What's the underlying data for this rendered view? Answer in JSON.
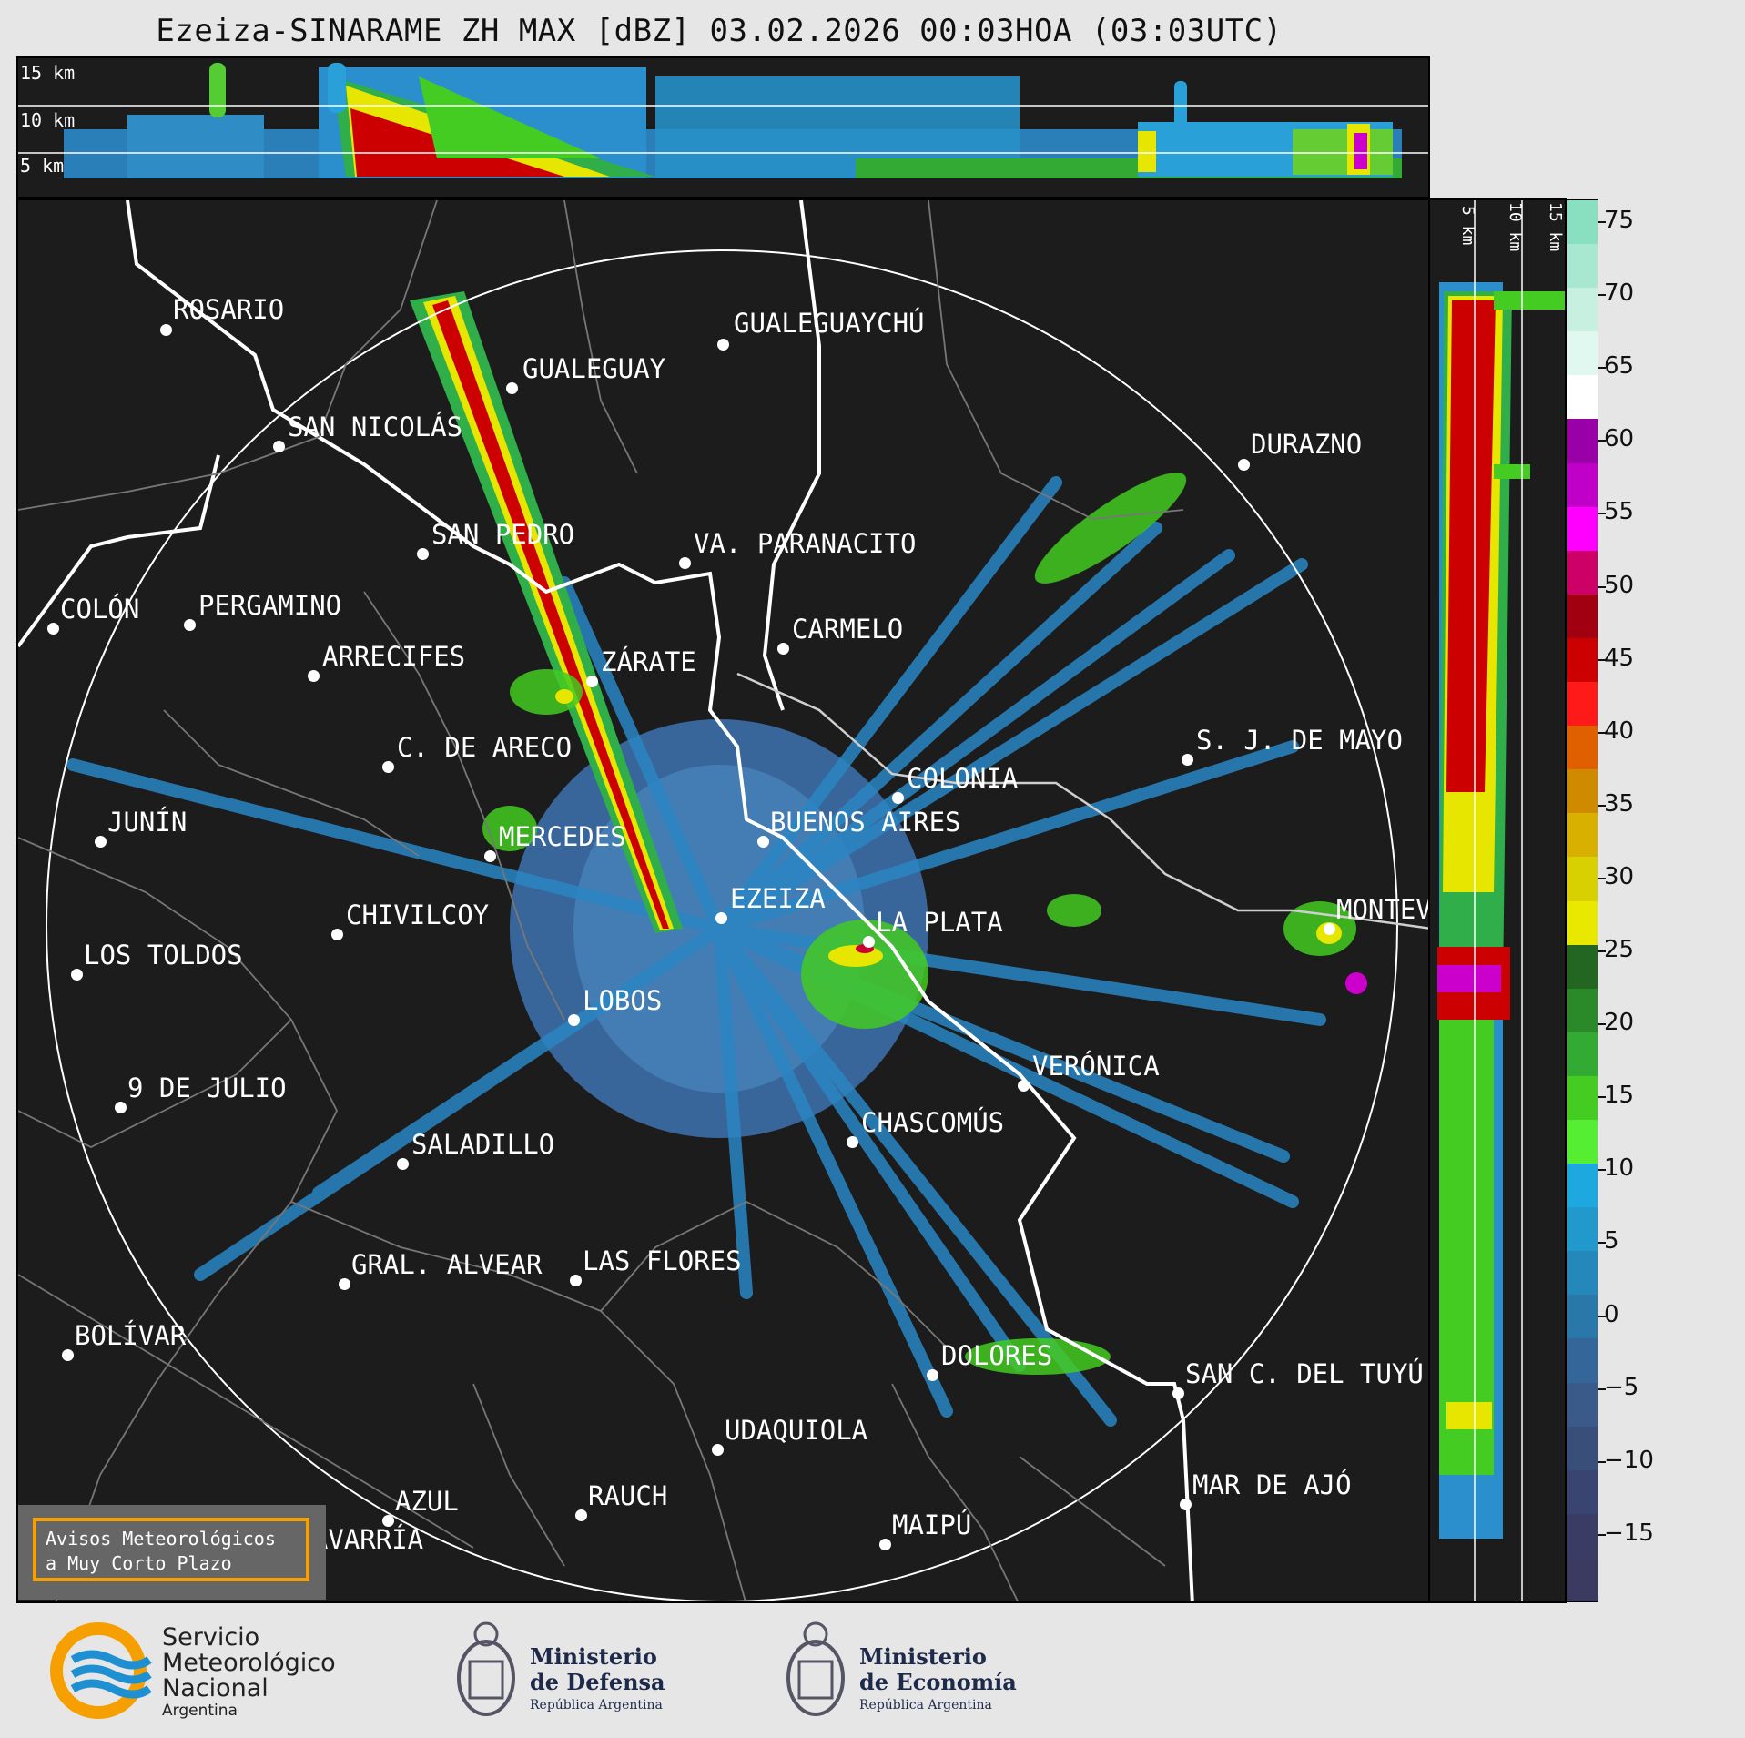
{
  "title": "Ezeiza-SINARAME ZH MAX [dBZ] 03.02.2026 00:03HOA (03:03UTC)",
  "top_panel": {
    "altitudes": [
      "15 km",
      "10 km",
      "5 km"
    ]
  },
  "side_panel": {
    "altitudes": [
      "5 km",
      "10 km",
      "15 km"
    ]
  },
  "colorbar": {
    "unit": "dBZ",
    "ticks": [
      "75",
      "70",
      "65",
      "60",
      "55",
      "50",
      "45",
      "40",
      "35",
      "30",
      "25",
      "20",
      "15",
      "10",
      "5",
      "0",
      "−5",
      "−10",
      "−15"
    ],
    "bands": [
      "#88e0c0",
      "#a8e8d0",
      "#c8f0e0",
      "#e0f8f0",
      "#ffffff",
      "#9a00a8",
      "#c000c8",
      "#ff00ff",
      "#cc0066",
      "#a00010",
      "#cc0000",
      "#ff1a1a",
      "#e06000",
      "#d08a00",
      "#d8b000",
      "#d8d000",
      "#e8e800",
      "#226622",
      "#2a8a2a",
      "#33aa33",
      "#44cc22",
      "#55ee33",
      "#1ea8e0",
      "#2299cc",
      "#2488bb",
      "#2a78aa",
      "#346699",
      "#3a5a8a",
      "#3a4e7a",
      "#3a4470",
      "#3a3c66",
      "#3b3a60"
    ]
  },
  "cities": [
    {
      "name": "ROSARIO"
    },
    {
      "name": "GUALEGUAYCHÚ"
    },
    {
      "name": "GUALEGUAY"
    },
    {
      "name": "SAN NICOLÁS"
    },
    {
      "name": "DURAZNO"
    },
    {
      "name": "SAN PEDRO"
    },
    {
      "name": "VA. PARANACITO"
    },
    {
      "name": "COLÓN"
    },
    {
      "name": "PERGAMINO"
    },
    {
      "name": "CARMELO"
    },
    {
      "name": "ARRECIFES"
    },
    {
      "name": "ZÁRATE"
    },
    {
      "name": "S. J. DE MAYO"
    },
    {
      "name": "C. DE ARECO"
    },
    {
      "name": "COLONIA"
    },
    {
      "name": "JUNÍN"
    },
    {
      "name": "BUENOS AIRES"
    },
    {
      "name": "MERCEDES"
    },
    {
      "name": "EZEIZA"
    },
    {
      "name": "MONTEVIDEO"
    },
    {
      "name": "CHIVILCOY"
    },
    {
      "name": "LA PLATA"
    },
    {
      "name": "LOS TOLDOS"
    },
    {
      "name": "LOBOS"
    },
    {
      "name": "VERÓNICA"
    },
    {
      "name": "9 DE JULIO"
    },
    {
      "name": "CHASCOMÚS"
    },
    {
      "name": "SALADILLO"
    },
    {
      "name": "GRAL. ALVEAR"
    },
    {
      "name": "LAS FLORES"
    },
    {
      "name": "BOLÍVAR"
    },
    {
      "name": "DOLORES"
    },
    {
      "name": "SAN C. DEL TUYÚ"
    },
    {
      "name": "UDAQUIOLA"
    },
    {
      "name": "MAR DE AJÓ"
    },
    {
      "name": "AZUL"
    },
    {
      "name": "RAUCH"
    },
    {
      "name": "OLAVARRÍA"
    },
    {
      "name": "MAIPÚ"
    }
  ],
  "alert": {
    "line1": "Avisos Meteorológicos",
    "line2": "a Muy Corto Plazo"
  },
  "footer": {
    "smn": {
      "line1": "Servicio",
      "line2": "Meteorológico",
      "line3": "Nacional",
      "line4": "Argentina",
      "colors": [
        "#f5a000",
        "#1e8fd0"
      ]
    },
    "defensa": {
      "line1": "Ministerio",
      "line2": "de Defensa",
      "sub": "República Argentina"
    },
    "economia": {
      "line1": "Ministerio",
      "line2": "de Economía",
      "sub": "República Argentina"
    }
  }
}
